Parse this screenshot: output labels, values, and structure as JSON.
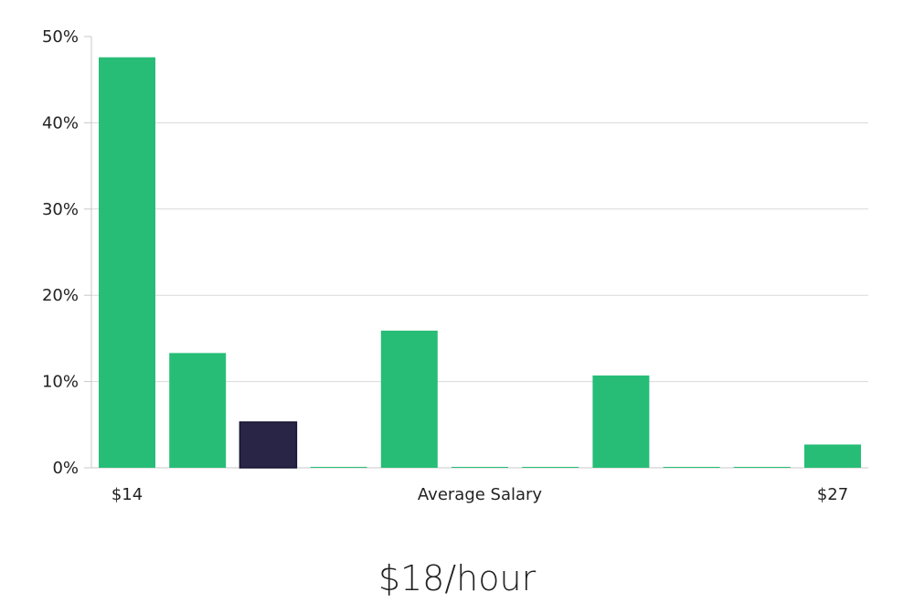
{
  "chart_data": {
    "type": "bar",
    "y_axis": {
      "ylim": [
        0,
        50
      ],
      "ticks": [
        "0%",
        "10%",
        "20%",
        "30%",
        "40%",
        "50%"
      ],
      "tick_values": [
        0,
        10,
        20,
        30,
        40,
        50
      ],
      "grid": true
    },
    "x_axis": {
      "start_label": "$14",
      "center_label": "Average Salary",
      "end_label": "$27"
    },
    "values": [
      47.6,
      13.3,
      5.3,
      0.1,
      15.9,
      0.1,
      0.1,
      10.7,
      0.1,
      0.1,
      2.7
    ],
    "highlight_index": 2,
    "colors": {
      "bar": "#27bd77",
      "highlight": "#282546",
      "highlight_border": "#161430",
      "grid": "#d9d9d9",
      "axis": "#c8c8c8"
    }
  },
  "salary_value": "$18/hour"
}
